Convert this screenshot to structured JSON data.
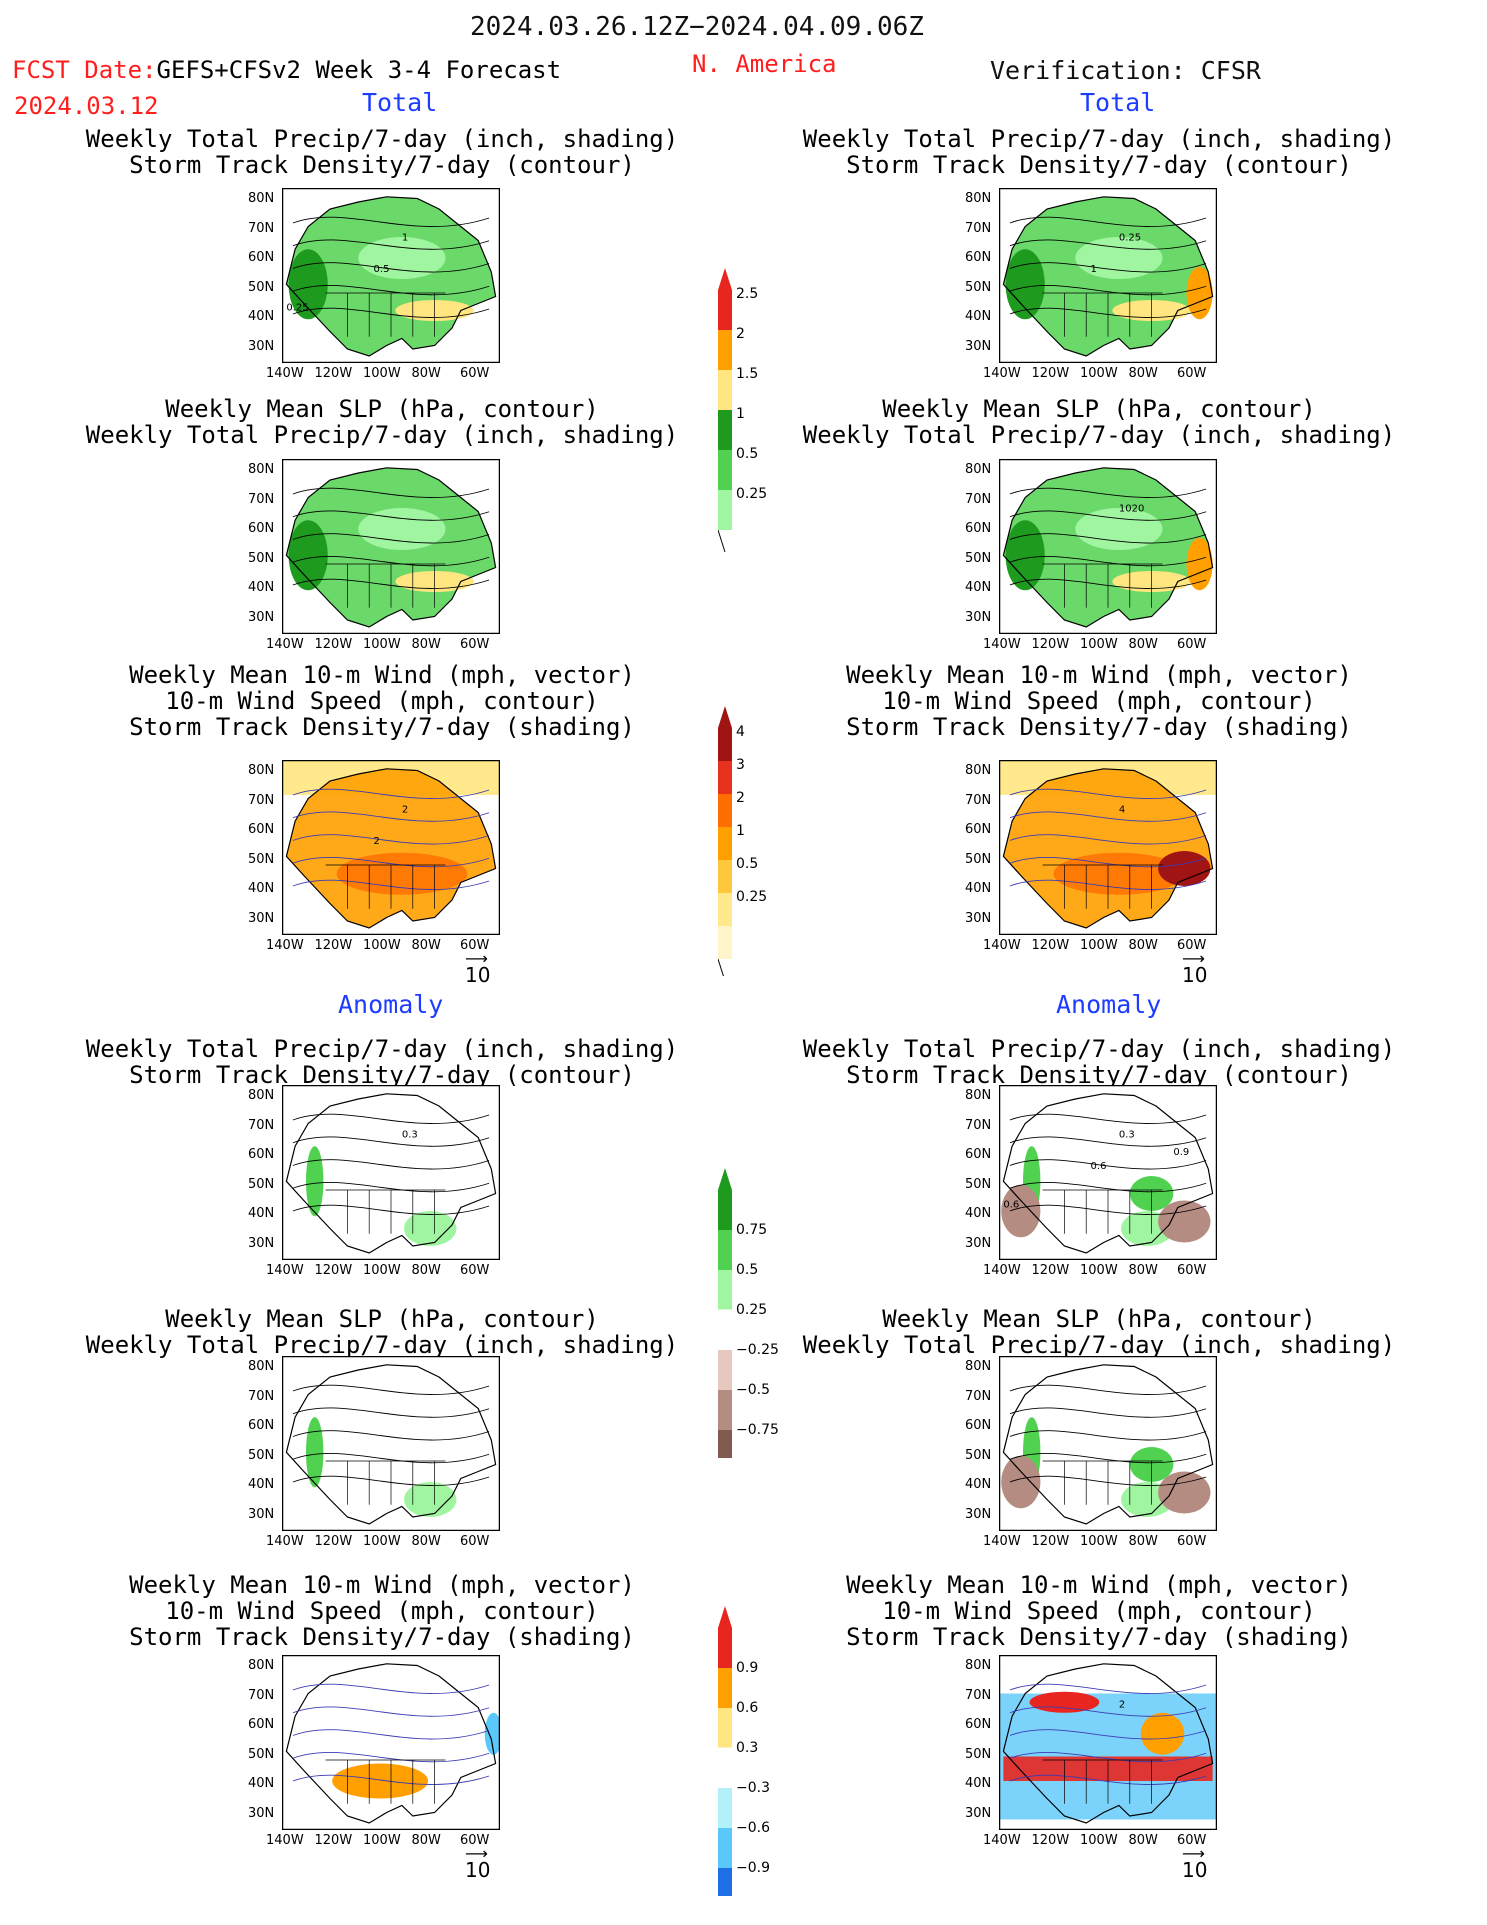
{
  "header": {
    "period": "2024.03.26.12Z−2024.04.09.06Z",
    "fcst_label": "FCST Date:",
    "model": "GEFS+CFSv2 Week 3-4 Forecast",
    "fcst_date": "2024.03.12",
    "region": "N. America",
    "verification": "Verification: CFSR"
  },
  "sections": {
    "total": "Total",
    "anomaly": "Anomaly"
  },
  "panel_titles": {
    "precip_storm": [
      "Weekly Total Precip/7-day (inch, shading)",
      "Storm Track Density/7-day (contour)"
    ],
    "slp_precip": [
      "Weekly Mean SLP (hPa, contour)",
      "Weekly Total Precip/7-day (inch, shading)"
    ],
    "wind_storm": [
      "Weekly Mean 10-m Wind (mph, vector)",
      "10-m Wind Speed (mph, contour)",
      "Storm Track Density/7-day (shading)"
    ]
  },
  "axes": {
    "lat_ticks": [
      "80N",
      "70N",
      "60N",
      "50N",
      "40N",
      "30N"
    ],
    "lon_ticks": [
      "140W",
      "120W",
      "100W",
      "80W",
      "60W"
    ]
  },
  "vector_ref": "10",
  "contour_labels": {
    "fc_precip_storm": [
      "1",
      "0.5",
      "0.25"
    ],
    "obs_precip_storm": [
      "0.25",
      "1"
    ],
    "obs_slp": [
      "1020"
    ],
    "fc_wind": [
      "2",
      "2"
    ],
    "obs_wind": [
      "4"
    ],
    "anom_fc_precip": [
      "0.3"
    ],
    "anom_obs_precip": [
      "0.3",
      "0.6",
      "0.6",
      "0.9"
    ],
    "anom_obs_wind": [
      "2"
    ]
  },
  "colorbars": {
    "precip_total": {
      "labels": [
        "2.5",
        "2",
        "1.5",
        "1",
        "0.5",
        "0.25"
      ],
      "colors": [
        "#e8251e",
        "#ffa000",
        "#ffe680",
        "#1e9b1e",
        "#50d250",
        "#a0f5a0"
      ]
    },
    "storm_total": {
      "labels": [
        "4",
        "3",
        "2",
        "1",
        "0.5",
        "0.25"
      ],
      "colors": [
        "#a01414",
        "#e6321e",
        "#ff6e00",
        "#ffa000",
        "#ffc83c",
        "#ffe98c",
        "#fff5c8"
      ]
    },
    "precip_anom": {
      "labels": [
        "0.75",
        "0.5",
        "0.25",
        "−0.25",
        "−0.5",
        "−0.75"
      ],
      "colors": [
        "#1e9b1e",
        "#50d250",
        "#a0f5a0",
        "#ffffff",
        "#e6c8be",
        "#b48c82",
        "#825a50"
      ]
    },
    "storm_anom": {
      "labels": [
        "0.9",
        "0.6",
        "0.3",
        "−0.3",
        "−0.6",
        "−0.9"
      ],
      "colors": [
        "#e8251e",
        "#ffa000",
        "#ffe680",
        "#ffffff",
        "#b4f0fa",
        "#5ac8fa",
        "#1e6ee6"
      ]
    }
  },
  "chart_data": [
    {
      "type": "heatmap",
      "panel": "total forecast",
      "title": [
        "Weekly Total Precip/7-day (inch, shading)",
        "Storm Track Density/7-day (contour)"
      ],
      "xlabel_ticks": [
        "140W",
        "120W",
        "100W",
        "80W",
        "60W"
      ],
      "ylabel_ticks": [
        "80N",
        "70N",
        "60N",
        "50N",
        "40N",
        "30N"
      ],
      "xlim": [
        -145,
        -55
      ],
      "ylim": [
        25,
        85
      ],
      "legend_levels": [
        0.25,
        0.5,
        1,
        1.5,
        2,
        2.5
      ]
    },
    {
      "type": "heatmap",
      "panel": "total verification",
      "title": [
        "Weekly Total Precip/7-day (inch, shading)",
        "Storm Track Density/7-day (contour)"
      ],
      "xlim": [
        -145,
        -55
      ],
      "ylim": [
        25,
        85
      ],
      "legend_levels": [
        0.25,
        0.5,
        1,
        1.5,
        2,
        2.5
      ]
    },
    {
      "type": "heatmap",
      "panel": "total forecast",
      "title": [
        "Weekly Mean SLP (hPa, contour)",
        "Weekly Total Precip/7-day (inch, shading)"
      ],
      "xlim": [
        -145,
        -55
      ],
      "ylim": [
        25,
        85
      ]
    },
    {
      "type": "heatmap",
      "panel": "total verification",
      "title": [
        "Weekly Mean SLP (hPa, contour)",
        "Weekly Total Precip/7-day (inch, shading)"
      ],
      "xlim": [
        -145,
        -55
      ],
      "ylim": [
        25,
        85
      ]
    },
    {
      "type": "heatmap",
      "panel": "total forecast",
      "title": [
        "Weekly Mean 10-m Wind (mph, vector)",
        "10-m Wind Speed (mph, contour)",
        "Storm Track Density/7-day (shading)"
      ],
      "xlim": [
        -145,
        -55
      ],
      "ylim": [
        25,
        85
      ],
      "legend_levels": [
        0.25,
        0.5,
        1,
        2,
        3,
        4
      ]
    },
    {
      "type": "heatmap",
      "panel": "total verification",
      "title": [
        "Weekly Mean 10-m Wind (mph, vector)",
        "10-m Wind Speed (mph, contour)",
        "Storm Track Density/7-day (shading)"
      ],
      "xlim": [
        -145,
        -55
      ],
      "ylim": [
        25,
        85
      ],
      "legend_levels": [
        0.25,
        0.5,
        1,
        2,
        3,
        4
      ]
    },
    {
      "type": "heatmap",
      "panel": "anomaly forecast",
      "title": [
        "Weekly Total Precip/7-day (inch, shading)",
        "Storm Track Density/7-day (contour)"
      ],
      "xlim": [
        -145,
        -55
      ],
      "ylim": [
        25,
        85
      ],
      "legend_levels": [
        -0.75,
        -0.5,
        -0.25,
        0.25,
        0.5,
        0.75
      ]
    },
    {
      "type": "heatmap",
      "panel": "anomaly verification",
      "title": [
        "Weekly Total Precip/7-day (inch, shading)",
        "Storm Track Density/7-day (contour)"
      ],
      "xlim": [
        -145,
        -55
      ],
      "ylim": [
        25,
        85
      ],
      "legend_levels": [
        -0.75,
        -0.5,
        -0.25,
        0.25,
        0.5,
        0.75
      ]
    },
    {
      "type": "heatmap",
      "panel": "anomaly forecast",
      "title": [
        "Weekly Mean SLP (hPa, contour)",
        "Weekly Total Precip/7-day (inch, shading)"
      ],
      "xlim": [
        -145,
        -55
      ],
      "ylim": [
        25,
        85
      ]
    },
    {
      "type": "heatmap",
      "panel": "anomaly verification",
      "title": [
        "Weekly Mean SLP (hPa, contour)",
        "Weekly Total Precip/7-day (inch, shading)"
      ],
      "xlim": [
        -145,
        -55
      ],
      "ylim": [
        25,
        85
      ]
    },
    {
      "type": "heatmap",
      "panel": "anomaly forecast",
      "title": [
        "Weekly Mean 10-m Wind (mph, vector)",
        "10-m Wind Speed (mph, contour)",
        "Storm Track Density/7-day (shading)"
      ],
      "xlim": [
        -145,
        -55
      ],
      "ylim": [
        25,
        85
      ],
      "legend_levels": [
        -0.9,
        -0.6,
        -0.3,
        0.3,
        0.6,
        0.9
      ]
    },
    {
      "type": "heatmap",
      "panel": "anomaly verification",
      "title": [
        "Weekly Mean 10-m Wind (mph, vector)",
        "10-m Wind Speed (mph, contour)",
        "Storm Track Density/7-day (shading)"
      ],
      "xlim": [
        -145,
        -55
      ],
      "ylim": [
        25,
        85
      ],
      "legend_levels": [
        -0.9,
        -0.6,
        -0.3,
        0.3,
        0.6,
        0.9
      ]
    }
  ]
}
